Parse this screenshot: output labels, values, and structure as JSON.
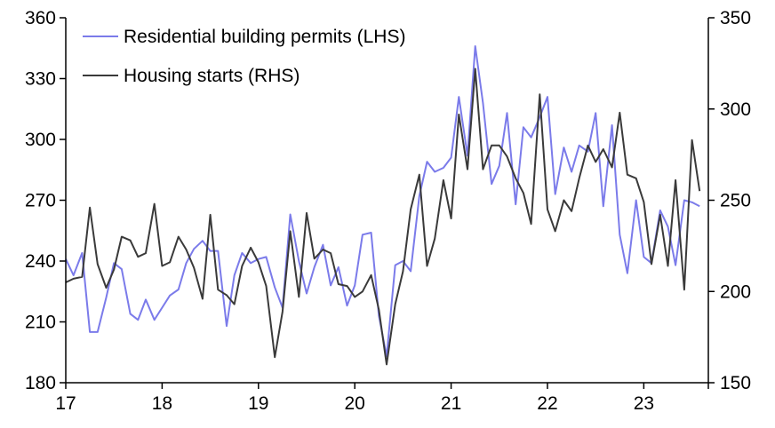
{
  "chart_data": {
    "type": "line",
    "x_tick_labels": [
      "17",
      "18",
      "19",
      "20",
      "21",
      "22",
      "23"
    ],
    "x_range": [
      2017.0,
      2023.67
    ],
    "left_axis": {
      "range": [
        180,
        360
      ],
      "ticks": [
        180,
        210,
        240,
        270,
        300,
        330,
        360
      ]
    },
    "right_axis": {
      "range": [
        150,
        350
      ],
      "ticks": [
        150,
        200,
        250,
        300,
        350
      ]
    },
    "legend_position": "top-left",
    "grid": false,
    "series": [
      {
        "name": "Residential building permits (LHS)",
        "axis": "left",
        "color": "#7b7bea",
        "points": [
          [
            2017.0,
            241
          ],
          [
            2017.08,
            233
          ],
          [
            2017.17,
            244
          ],
          [
            2017.25,
            205
          ],
          [
            2017.33,
            205
          ],
          [
            2017.42,
            222
          ],
          [
            2017.5,
            239
          ],
          [
            2017.58,
            236
          ],
          [
            2017.67,
            214
          ],
          [
            2017.75,
            211
          ],
          [
            2017.83,
            221
          ],
          [
            2017.92,
            211
          ],
          [
            2018.0,
            217
          ],
          [
            2018.08,
            223
          ],
          [
            2018.17,
            226
          ],
          [
            2018.25,
            239
          ],
          [
            2018.33,
            246
          ],
          [
            2018.42,
            250
          ],
          [
            2018.5,
            245
          ],
          [
            2018.58,
            245
          ],
          [
            2018.67,
            208
          ],
          [
            2018.75,
            233
          ],
          [
            2018.83,
            244
          ],
          [
            2018.92,
            239
          ],
          [
            2019.0,
            241
          ],
          [
            2019.08,
            242
          ],
          [
            2019.17,
            227
          ],
          [
            2019.25,
            217
          ],
          [
            2019.33,
            263
          ],
          [
            2019.42,
            240
          ],
          [
            2019.5,
            224
          ],
          [
            2019.58,
            237
          ],
          [
            2019.67,
            248
          ],
          [
            2019.75,
            228
          ],
          [
            2019.83,
            237
          ],
          [
            2019.92,
            218
          ],
          [
            2020.0,
            228
          ],
          [
            2020.08,
            253
          ],
          [
            2020.17,
            254
          ],
          [
            2020.25,
            213
          ],
          [
            2020.33,
            193
          ],
          [
            2020.42,
            238
          ],
          [
            2020.5,
            240
          ],
          [
            2020.58,
            235
          ],
          [
            2020.67,
            272
          ],
          [
            2020.75,
            289
          ],
          [
            2020.83,
            284
          ],
          [
            2020.92,
            286
          ],
          [
            2021.0,
            291
          ],
          [
            2021.08,
            321
          ],
          [
            2021.17,
            292
          ],
          [
            2021.25,
            346
          ],
          [
            2021.33,
            318
          ],
          [
            2021.42,
            278
          ],
          [
            2021.5,
            287
          ],
          [
            2021.58,
            313
          ],
          [
            2021.67,
            268
          ],
          [
            2021.75,
            306
          ],
          [
            2021.83,
            301
          ],
          [
            2021.92,
            311
          ],
          [
            2022.0,
            321
          ],
          [
            2022.08,
            273
          ],
          [
            2022.17,
            296
          ],
          [
            2022.25,
            284
          ],
          [
            2022.33,
            297
          ],
          [
            2022.42,
            294
          ],
          [
            2022.5,
            313
          ],
          [
            2022.58,
            267
          ],
          [
            2022.67,
            307
          ],
          [
            2022.75,
            253
          ],
          [
            2022.83,
            234
          ],
          [
            2022.92,
            270
          ],
          [
            2023.0,
            242
          ],
          [
            2023.08,
            239
          ],
          [
            2023.17,
            265
          ],
          [
            2023.25,
            257
          ],
          [
            2023.33,
            238
          ],
          [
            2023.42,
            270
          ],
          [
            2023.5,
            269
          ],
          [
            2023.58,
            267
          ]
        ]
      },
      {
        "name": "Housing starts (RHS)",
        "axis": "right",
        "color": "#3a3a3a",
        "points": [
          [
            2017.0,
            205
          ],
          [
            2017.08,
            207
          ],
          [
            2017.17,
            208
          ],
          [
            2017.25,
            246
          ],
          [
            2017.33,
            215
          ],
          [
            2017.42,
            202
          ],
          [
            2017.5,
            212
          ],
          [
            2017.58,
            230
          ],
          [
            2017.67,
            228
          ],
          [
            2017.75,
            219
          ],
          [
            2017.83,
            221
          ],
          [
            2017.92,
            248
          ],
          [
            2018.0,
            214
          ],
          [
            2018.08,
            216
          ],
          [
            2018.17,
            230
          ],
          [
            2018.25,
            223
          ],
          [
            2018.33,
            213
          ],
          [
            2018.42,
            196
          ],
          [
            2018.5,
            242
          ],
          [
            2018.58,
            201
          ],
          [
            2018.67,
            198
          ],
          [
            2018.75,
            193
          ],
          [
            2018.83,
            214
          ],
          [
            2018.92,
            224
          ],
          [
            2019.0,
            216
          ],
          [
            2019.08,
            203
          ],
          [
            2019.17,
            164
          ],
          [
            2019.25,
            189
          ],
          [
            2019.33,
            233
          ],
          [
            2019.42,
            197
          ],
          [
            2019.5,
            243
          ],
          [
            2019.58,
            218
          ],
          [
            2019.67,
            223
          ],
          [
            2019.75,
            221
          ],
          [
            2019.83,
            204
          ],
          [
            2019.92,
            203
          ],
          [
            2020.0,
            197
          ],
          [
            2020.08,
            200
          ],
          [
            2020.17,
            209
          ],
          [
            2020.25,
            190
          ],
          [
            2020.33,
            160
          ],
          [
            2020.42,
            193
          ],
          [
            2020.5,
            211
          ],
          [
            2020.58,
            245
          ],
          [
            2020.67,
            264
          ],
          [
            2020.75,
            214
          ],
          [
            2020.83,
            229
          ],
          [
            2020.92,
            261
          ],
          [
            2021.0,
            240
          ],
          [
            2021.08,
            297
          ],
          [
            2021.17,
            267
          ],
          [
            2021.25,
            322
          ],
          [
            2021.33,
            267
          ],
          [
            2021.42,
            280
          ],
          [
            2021.5,
            280
          ],
          [
            2021.58,
            274
          ],
          [
            2021.67,
            262
          ],
          [
            2021.75,
            254
          ],
          [
            2021.83,
            237
          ],
          [
            2021.92,
            308
          ],
          [
            2022.0,
            245
          ],
          [
            2022.08,
            233
          ],
          [
            2022.17,
            250
          ],
          [
            2022.25,
            244
          ],
          [
            2022.33,
            262
          ],
          [
            2022.42,
            280
          ],
          [
            2022.5,
            271
          ],
          [
            2022.58,
            278
          ],
          [
            2022.67,
            268
          ],
          [
            2022.75,
            298
          ],
          [
            2022.83,
            264
          ],
          [
            2022.92,
            262
          ],
          [
            2023.0,
            249
          ],
          [
            2023.08,
            215
          ],
          [
            2023.17,
            242
          ],
          [
            2023.25,
            214
          ],
          [
            2023.33,
            261
          ],
          [
            2023.42,
            201
          ],
          [
            2023.5,
            283
          ],
          [
            2023.58,
            255
          ]
        ]
      }
    ]
  }
}
